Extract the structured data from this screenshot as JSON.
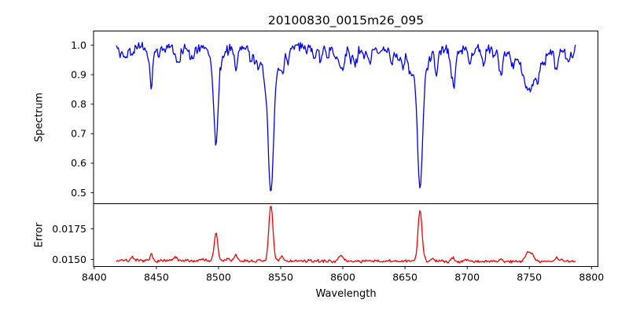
{
  "figure": {
    "title": "20100830_0015m26_095",
    "background": "#ffffff"
  },
  "chart_data": {
    "type": "line",
    "title": "20100830_0015m26_095",
    "xlabel": "Wavelength",
    "grid": false,
    "legend": false,
    "xlim": [
      8399.5,
      8805.2
    ],
    "x_ticks": [
      8400,
      8450,
      8500,
      8550,
      8600,
      8650,
      8700,
      8750,
      8800
    ],
    "x_data_range": [
      8418,
      8787
    ],
    "panels": [
      {
        "name": "spectrum",
        "ylabel": "Spectrum",
        "color": "#0000f5",
        "ylim": [
          0.4628,
          1.0478
        ],
        "y_ticks": [
          {
            "v": 1.0,
            "label": "1.0"
          },
          {
            "v": 0.9,
            "label": "0.9"
          },
          {
            "v": 0.8,
            "label": "0.8"
          },
          {
            "v": 0.7,
            "label": "0.7"
          },
          {
            "v": 0.6,
            "label": "0.6"
          },
          {
            "v": 0.5,
            "label": "0.5"
          }
        ],
        "continuum_level": 0.988,
        "noise_sigma": 0.008,
        "absorption_lines": [
          {
            "center": 8421.0,
            "depth": 0.03,
            "width": 0.8
          },
          {
            "center": 8430.5,
            "depth": 0.035,
            "width": 0.8
          },
          {
            "center": 8446.0,
            "depth": 0.105,
            "width": 0.9
          },
          {
            "center": 8452.0,
            "depth": 0.03,
            "width": 0.8
          },
          {
            "center": 8467.6,
            "depth": 0.055,
            "width": 1.6
          },
          {
            "center": 8480.0,
            "depth": 0.03,
            "width": 0.9
          },
          {
            "center": 8498.0,
            "depth": 0.26,
            "width": 1.5
          },
          {
            "center": 8498.0,
            "depth": 0.07,
            "width": 4.0
          },
          {
            "center": 8514.0,
            "depth": 0.05,
            "width": 1.0
          },
          {
            "center": 8526.0,
            "depth": 0.045,
            "width": 0.9
          },
          {
            "center": 8532.0,
            "depth": 0.05,
            "width": 0.9
          },
          {
            "center": 8542.1,
            "depth": 0.385,
            "width": 2.0
          },
          {
            "center": 8542.1,
            "depth": 0.11,
            "width": 6.0
          },
          {
            "center": 8551.8,
            "depth": 0.065,
            "width": 1.1
          },
          {
            "center": 8556.0,
            "depth": 0.04,
            "width": 0.9
          },
          {
            "center": 8582.0,
            "depth": 0.04,
            "width": 1.0
          },
          {
            "center": 8598.8,
            "depth": 0.055,
            "width": 2.6
          },
          {
            "center": 8611.0,
            "depth": 0.04,
            "width": 1.0
          },
          {
            "center": 8621.5,
            "depth": 0.045,
            "width": 1.1
          },
          {
            "center": 8648.5,
            "depth": 0.055,
            "width": 1.0
          },
          {
            "center": 8662.1,
            "depth": 0.37,
            "width": 1.9
          },
          {
            "center": 8662.1,
            "depth": 0.1,
            "width": 5.5
          },
          {
            "center": 8674.8,
            "depth": 0.05,
            "width": 1.0
          },
          {
            "center": 8688.6,
            "depth": 0.095,
            "width": 1.7
          },
          {
            "center": 8702.0,
            "depth": 0.04,
            "width": 1.0
          },
          {
            "center": 8713.0,
            "depth": 0.055,
            "width": 1.3
          },
          {
            "center": 8727.0,
            "depth": 0.06,
            "width": 1.3
          },
          {
            "center": 8736.0,
            "depth": 0.04,
            "width": 1.0
          },
          {
            "center": 8750.0,
            "depth": 0.1,
            "width": 4.5
          },
          {
            "center": 8750.0,
            "depth": 0.04,
            "width": 10.0
          },
          {
            "center": 8757.0,
            "depth": 0.04,
            "width": 1.0
          },
          {
            "center": 8772.0,
            "depth": 0.045,
            "width": 1.2
          },
          {
            "center": 8780.0,
            "depth": 0.035,
            "width": 0.9
          }
        ],
        "notable_minima": [
          {
            "wavelength": 8446,
            "value": 0.89
          },
          {
            "wavelength": 8498,
            "value": 0.665
          },
          {
            "wavelength": 8542,
            "value": 0.49
          },
          {
            "wavelength": 8662,
            "value": 0.515
          },
          {
            "wavelength": 8750,
            "value": 0.855
          }
        ]
      },
      {
        "name": "error",
        "ylabel": "Error",
        "color": "#f50000",
        "ylim": [
          0.014423,
          0.019551
        ],
        "y_ticks": [
          {
            "v": 0.0175,
            "label": "0.0175"
          },
          {
            "v": 0.015,
            "label": "0.0150"
          }
        ],
        "baseline_level": 0.0149,
        "noise_sigma": 6e-05,
        "peaks": [
          {
            "center": 8430.5,
            "amp": 0.0004,
            "width": 0.9
          },
          {
            "center": 8446.0,
            "amp": 0.0005,
            "width": 1.0
          },
          {
            "center": 8465.0,
            "amp": 0.0003,
            "width": 1.3
          },
          {
            "center": 8498.0,
            "amp": 0.0023,
            "width": 1.4
          },
          {
            "center": 8514.0,
            "amp": 0.0002,
            "width": 1.0
          },
          {
            "center": 8542.1,
            "amp": 0.0044,
            "width": 1.6
          },
          {
            "center": 8551.0,
            "amp": 0.0004,
            "width": 1.3
          },
          {
            "center": 8598.0,
            "amp": 0.0003,
            "width": 2.0
          },
          {
            "center": 8662.1,
            "amp": 0.0042,
            "width": 1.6
          },
          {
            "center": 8688.0,
            "amp": 0.0003,
            "width": 1.3
          },
          {
            "center": 8727.0,
            "amp": 0.0002,
            "width": 1.2
          },
          {
            "center": 8750.0,
            "amp": 0.0008,
            "width": 3.0
          },
          {
            "center": 8772.0,
            "amp": 0.0003,
            "width": 1.0
          }
        ],
        "notable_maxima": [
          {
            "wavelength": 8498,
            "value": 0.0172
          },
          {
            "wavelength": 8542,
            "value": 0.0193
          },
          {
            "wavelength": 8662,
            "value": 0.0192
          }
        ]
      }
    ]
  }
}
